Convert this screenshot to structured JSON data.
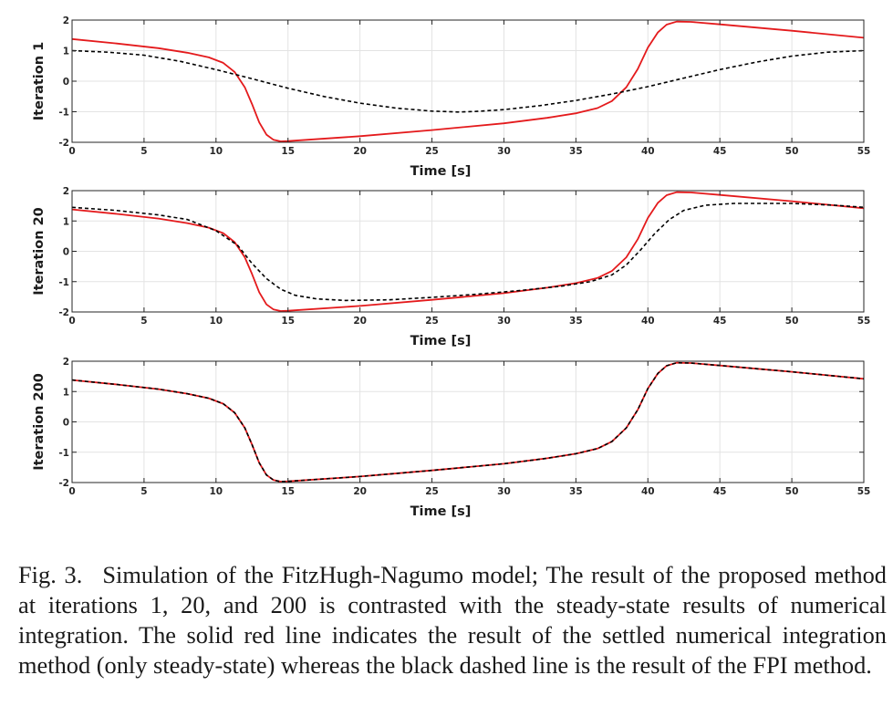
{
  "chart_data": [
    {
      "type": "line",
      "ylabel": "Iteration 1",
      "xlabel": "Time [s]",
      "xlim": [
        0,
        55
      ],
      "ylim": [
        -2,
        2
      ],
      "x_ticks": [
        "0",
        "5",
        "10",
        "15",
        "20",
        "25",
        "30",
        "35",
        "40",
        "45",
        "50",
        "55"
      ],
      "y_ticks": [
        "-2",
        "-1",
        "0",
        "1",
        "2"
      ],
      "grid": true,
      "series": [
        {
          "style": "solid",
          "color": "#e41a1c",
          "points": [
            [
              0,
              1.38
            ],
            [
              3,
              1.24
            ],
            [
              6,
              1.08
            ],
            [
              8,
              0.93
            ],
            [
              9.5,
              0.78
            ],
            [
              10.5,
              0.6
            ],
            [
              11.3,
              0.3
            ],
            [
              12,
              -0.2
            ],
            [
              12.5,
              -0.75
            ],
            [
              13,
              -1.35
            ],
            [
              13.5,
              -1.75
            ],
            [
              14,
              -1.92
            ],
            [
              14.5,
              -1.97
            ],
            [
              15,
              -1.96
            ],
            [
              20,
              -1.8
            ],
            [
              25,
              -1.6
            ],
            [
              30,
              -1.38
            ],
            [
              33,
              -1.2
            ],
            [
              35,
              -1.05
            ],
            [
              36.5,
              -0.88
            ],
            [
              37.5,
              -0.65
            ],
            [
              38.5,
              -0.2
            ],
            [
              39.3,
              0.4
            ],
            [
              40,
              1.1
            ],
            [
              40.7,
              1.6
            ],
            [
              41.3,
              1.85
            ],
            [
              42,
              1.95
            ],
            [
              43,
              1.94
            ],
            [
              45,
              1.86
            ],
            [
              50,
              1.65
            ],
            [
              55,
              1.42
            ]
          ]
        },
        {
          "style": "dashed",
          "color": "#000000",
          "points": [
            [
              0,
              1.0
            ],
            [
              2.5,
              0.95
            ],
            [
              5,
              0.85
            ],
            [
              7.5,
              0.65
            ],
            [
              10,
              0.38
            ],
            [
              12.5,
              0.08
            ],
            [
              15,
              -0.23
            ],
            [
              17.5,
              -0.5
            ],
            [
              20,
              -0.72
            ],
            [
              22.5,
              -0.88
            ],
            [
              25,
              -0.98
            ],
            [
              26.8,
              -1.01
            ],
            [
              28,
              -0.99
            ],
            [
              30,
              -0.93
            ],
            [
              32.5,
              -0.8
            ],
            [
              35,
              -0.63
            ],
            [
              37.5,
              -0.42
            ],
            [
              40,
              -0.18
            ],
            [
              42.5,
              0.1
            ],
            [
              45,
              0.38
            ],
            [
              47.5,
              0.62
            ],
            [
              50,
              0.82
            ],
            [
              52.5,
              0.95
            ],
            [
              55,
              1.0
            ]
          ]
        }
      ]
    },
    {
      "type": "line",
      "ylabel": "Iteration 20",
      "xlabel": "Time [s]",
      "xlim": [
        0,
        55
      ],
      "ylim": [
        -2,
        2
      ],
      "x_ticks": [
        "0",
        "5",
        "10",
        "15",
        "20",
        "25",
        "30",
        "35",
        "40",
        "45",
        "50",
        "55"
      ],
      "y_ticks": [
        "-2",
        "-1",
        "0",
        "1",
        "2"
      ],
      "grid": true,
      "series": [
        {
          "style": "solid",
          "color": "#e41a1c",
          "points": [
            [
              0,
              1.38
            ],
            [
              3,
              1.24
            ],
            [
              6,
              1.08
            ],
            [
              8,
              0.93
            ],
            [
              9.5,
              0.78
            ],
            [
              10.5,
              0.6
            ],
            [
              11.3,
              0.3
            ],
            [
              12,
              -0.2
            ],
            [
              12.5,
              -0.75
            ],
            [
              13,
              -1.35
            ],
            [
              13.5,
              -1.75
            ],
            [
              14,
              -1.92
            ],
            [
              14.5,
              -1.97
            ],
            [
              15,
              -1.96
            ],
            [
              20,
              -1.8
            ],
            [
              25,
              -1.6
            ],
            [
              30,
              -1.38
            ],
            [
              33,
              -1.2
            ],
            [
              35,
              -1.05
            ],
            [
              36.5,
              -0.88
            ],
            [
              37.5,
              -0.65
            ],
            [
              38.5,
              -0.2
            ],
            [
              39.3,
              0.4
            ],
            [
              40,
              1.1
            ],
            [
              40.7,
              1.6
            ],
            [
              41.3,
              1.85
            ],
            [
              42,
              1.95
            ],
            [
              43,
              1.94
            ],
            [
              45,
              1.86
            ],
            [
              50,
              1.65
            ],
            [
              55,
              1.42
            ]
          ]
        },
        {
          "style": "dashed",
          "color": "#000000",
          "points": [
            [
              0,
              1.45
            ],
            [
              3,
              1.35
            ],
            [
              6,
              1.2
            ],
            [
              8,
              1.05
            ],
            [
              10,
              0.68
            ],
            [
              11.5,
              0.2
            ],
            [
              12.5,
              -0.4
            ],
            [
              13.5,
              -0.9
            ],
            [
              14.5,
              -1.25
            ],
            [
              15.5,
              -1.45
            ],
            [
              17,
              -1.57
            ],
            [
              19,
              -1.62
            ],
            [
              22,
              -1.6
            ],
            [
              25,
              -1.52
            ],
            [
              28,
              -1.42
            ],
            [
              31,
              -1.3
            ],
            [
              34,
              -1.15
            ],
            [
              36,
              -1.0
            ],
            [
              37.5,
              -0.78
            ],
            [
              38.5,
              -0.45
            ],
            [
              39.5,
              0.05
            ],
            [
              40.5,
              0.6
            ],
            [
              41.5,
              1.05
            ],
            [
              42.5,
              1.35
            ],
            [
              44,
              1.52
            ],
            [
              46,
              1.58
            ],
            [
              50,
              1.58
            ],
            [
              53,
              1.52
            ],
            [
              55,
              1.45
            ]
          ]
        }
      ]
    },
    {
      "type": "line",
      "ylabel": "Iteration 200",
      "xlabel": "Time [s]",
      "xlim": [
        0,
        55
      ],
      "ylim": [
        -2,
        2
      ],
      "x_ticks": [
        "0",
        "5",
        "10",
        "15",
        "20",
        "25",
        "30",
        "35",
        "40",
        "45",
        "50",
        "55"
      ],
      "y_ticks": [
        "-2",
        "-1",
        "0",
        "1",
        "2"
      ],
      "grid": true,
      "series": [
        {
          "style": "solid",
          "color": "#e41a1c",
          "points": [
            [
              0,
              1.38
            ],
            [
              3,
              1.24
            ],
            [
              6,
              1.08
            ],
            [
              8,
              0.93
            ],
            [
              9.5,
              0.78
            ],
            [
              10.5,
              0.6
            ],
            [
              11.3,
              0.3
            ],
            [
              12,
              -0.2
            ],
            [
              12.5,
              -0.75
            ],
            [
              13,
              -1.35
            ],
            [
              13.5,
              -1.75
            ],
            [
              14,
              -1.92
            ],
            [
              14.5,
              -1.97
            ],
            [
              15,
              -1.96
            ],
            [
              20,
              -1.8
            ],
            [
              25,
              -1.6
            ],
            [
              30,
              -1.38
            ],
            [
              33,
              -1.2
            ],
            [
              35,
              -1.05
            ],
            [
              36.5,
              -0.88
            ],
            [
              37.5,
              -0.65
            ],
            [
              38.5,
              -0.2
            ],
            [
              39.3,
              0.4
            ],
            [
              40,
              1.1
            ],
            [
              40.7,
              1.6
            ],
            [
              41.3,
              1.85
            ],
            [
              42,
              1.95
            ],
            [
              43,
              1.94
            ],
            [
              45,
              1.86
            ],
            [
              50,
              1.65
            ],
            [
              55,
              1.42
            ]
          ]
        },
        {
          "style": "dashed",
          "color": "#000000",
          "points": [
            [
              0,
              1.38
            ],
            [
              3,
              1.24
            ],
            [
              6,
              1.08
            ],
            [
              8,
              0.93
            ],
            [
              9.5,
              0.78
            ],
            [
              10.5,
              0.6
            ],
            [
              11.3,
              0.3
            ],
            [
              12,
              -0.2
            ],
            [
              12.5,
              -0.75
            ],
            [
              13,
              -1.35
            ],
            [
              13.5,
              -1.75
            ],
            [
              14,
              -1.92
            ],
            [
              14.5,
              -1.97
            ],
            [
              15,
              -1.96
            ],
            [
              20,
              -1.8
            ],
            [
              25,
              -1.6
            ],
            [
              30,
              -1.38
            ],
            [
              33,
              -1.2
            ],
            [
              35,
              -1.05
            ],
            [
              36.5,
              -0.88
            ],
            [
              37.5,
              -0.65
            ],
            [
              38.5,
              -0.2
            ],
            [
              39.3,
              0.4
            ],
            [
              40,
              1.1
            ],
            [
              40.7,
              1.6
            ],
            [
              41.3,
              1.85
            ],
            [
              42,
              1.95
            ],
            [
              43,
              1.94
            ],
            [
              45,
              1.86
            ],
            [
              50,
              1.65
            ],
            [
              55,
              1.42
            ]
          ]
        }
      ]
    }
  ],
  "caption": {
    "label": "Fig. 3.",
    "text": "Simulation of the FitzHugh-Nagumo model; The result of the proposed method at iterations 1, 20, and 200 is contrasted with the steady-state results of numerical integration. The solid red line indicates the result of the settled numerical integration method (only steady-state) whereas the black dashed line is the result of the FPI method."
  }
}
